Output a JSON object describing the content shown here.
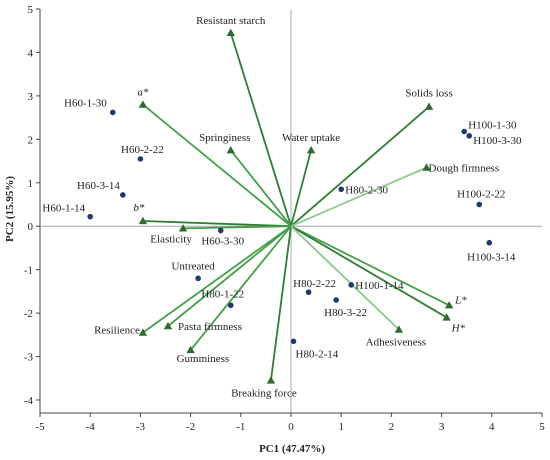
{
  "chart_data": {
    "type": "scatter",
    "subtype": "pca-biplot",
    "xlabel": "PC1 (47.47%)",
    "ylabel": "PC2 (15.95%)",
    "xlim": [
      -5,
      5
    ],
    "ylim": [
      -4.3,
      5
    ],
    "xticks": [
      -5,
      -4,
      -3,
      -2,
      -1,
      0,
      1,
      2,
      3,
      4,
      5
    ],
    "yticks": [
      -4,
      -3,
      -2,
      -1,
      0,
      1,
      2,
      3,
      4,
      5
    ],
    "grid": false,
    "colors": {
      "points": "#1f3a6e",
      "vector_dark": "#2e7d32",
      "vector_mid": "#43a047",
      "vector_light": "#8bc98d",
      "axis": "#444444"
    },
    "scores": [
      {
        "label": "H60-1-30",
        "x": -3.55,
        "y": 2.62
      },
      {
        "label": "H60-2-22",
        "x": -3.0,
        "y": 1.55
      },
      {
        "label": "H60-3-14",
        "x": -3.35,
        "y": 0.72
      },
      {
        "label": "H60-1-14",
        "x": -4.0,
        "y": 0.22
      },
      {
        "label": "H60-3-30",
        "x": -1.4,
        "y": -0.1
      },
      {
        "label": "Untreated",
        "x": -1.85,
        "y": -1.2
      },
      {
        "label": "H80-1-22",
        "x": -1.2,
        "y": -1.82
      },
      {
        "label": "H80-2-30",
        "x": 1.0,
        "y": 0.85
      },
      {
        "label": "H80-2-22",
        "x": 0.35,
        "y": -1.52
      },
      {
        "label": "H100-1-14",
        "x": 1.2,
        "y": -1.35
      },
      {
        "label": "H80-3-22",
        "x": 0.9,
        "y": -1.7
      },
      {
        "label": "H80-2-14",
        "x": 0.05,
        "y": -2.65
      },
      {
        "label": "H100-1-30",
        "x": 3.45,
        "y": 2.18
      },
      {
        "label": "H100-3-30",
        "x": 3.55,
        "y": 2.08
      },
      {
        "label": "H100-2-22",
        "x": 3.75,
        "y": 0.5
      },
      {
        "label": "H100-3-14",
        "x": 3.95,
        "y": -0.38
      }
    ],
    "loadings": [
      {
        "label": "Resistant starch",
        "x": -1.2,
        "y": 4.45,
        "shade": "dark"
      },
      {
        "label": "a*",
        "x": -2.95,
        "y": 2.8,
        "shade": "mid",
        "italic": true
      },
      {
        "label": "Springiness",
        "x": -1.2,
        "y": 1.75,
        "shade": "mid"
      },
      {
        "label": "Water uptake",
        "x": 0.4,
        "y": 1.75,
        "shade": "dark"
      },
      {
        "label": "Solids loss",
        "x": 2.75,
        "y": 2.75,
        "shade": "dark"
      },
      {
        "label": "Dough firmness",
        "x": 2.7,
        "y": 1.35,
        "shade": "light"
      },
      {
        "label": "b*",
        "x": -2.95,
        "y": 0.12,
        "shade": "dark",
        "italic": true
      },
      {
        "label": "Elasticity",
        "x": -2.15,
        "y": -0.05,
        "shade": "mid"
      },
      {
        "label": "Resilience",
        "x": -2.95,
        "y": -2.45,
        "shade": "mid"
      },
      {
        "label": "Pasta firmness",
        "x": -2.45,
        "y": -2.3,
        "shade": "mid"
      },
      {
        "label": "Gumminess",
        "x": -2.0,
        "y": -2.85,
        "shade": "mid"
      },
      {
        "label": "Breaking force",
        "x": -0.4,
        "y": -3.55,
        "shade": "dark"
      },
      {
        "label": "L*",
        "x": 3.15,
        "y": -1.82,
        "shade": "mid",
        "italic": true
      },
      {
        "label": "H*",
        "x": 3.1,
        "y": -2.1,
        "shade": "dark",
        "italic": true
      },
      {
        "label": "Adhesiveness",
        "x": 2.15,
        "y": -2.38,
        "shade": "light"
      }
    ]
  }
}
